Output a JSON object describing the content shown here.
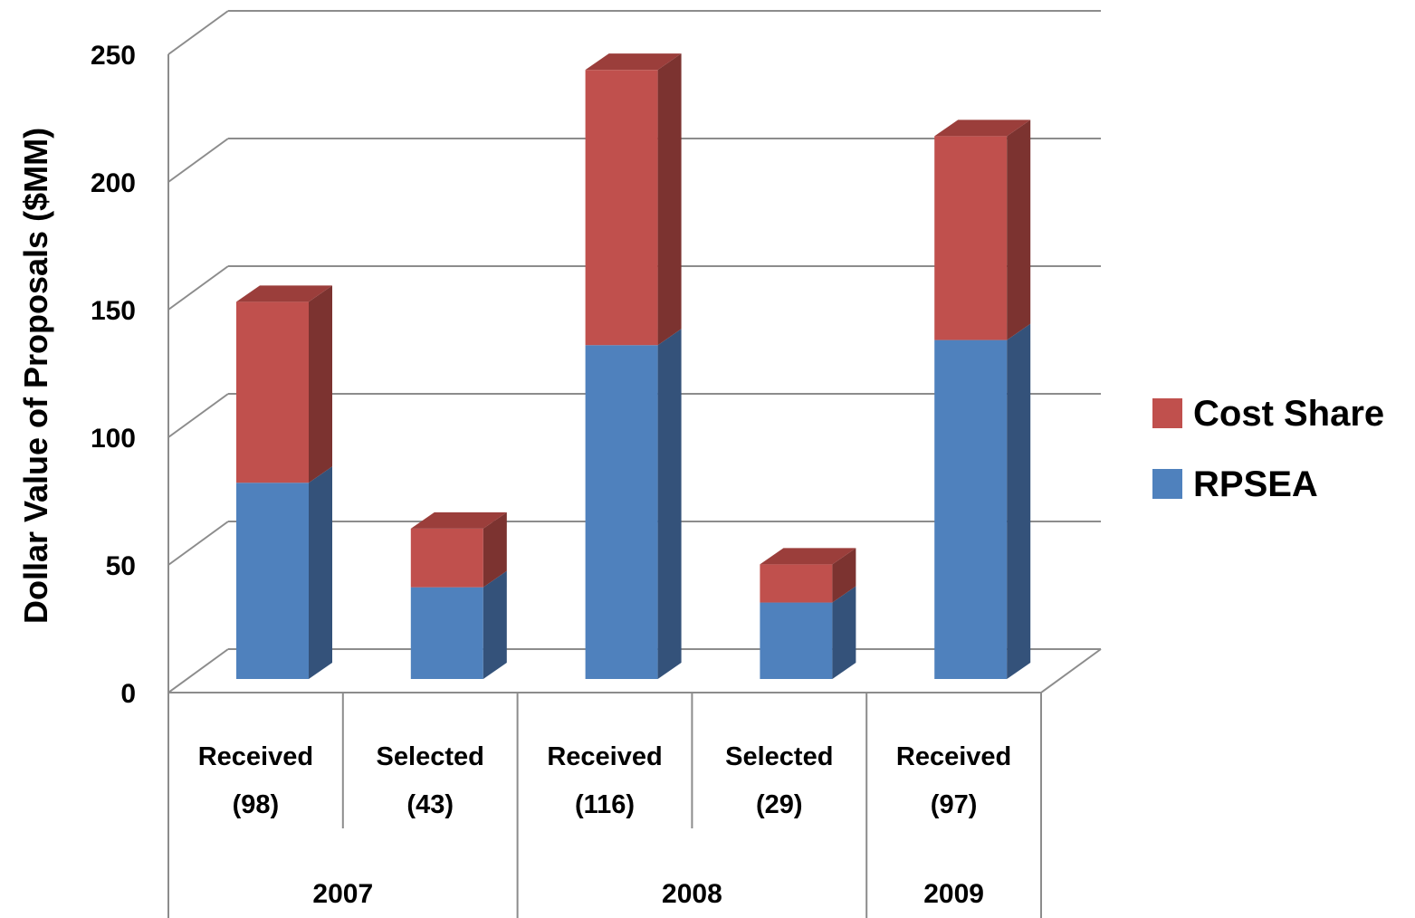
{
  "chart_data": {
    "type": "bar",
    "stacked": true,
    "three_d": true,
    "ylabel": "Dollar Value of Proposals ($MM)",
    "ylim": [
      0,
      250
    ],
    "yticks": [
      "0",
      "50",
      "100",
      "150",
      "200",
      "250"
    ],
    "ytick_values": [
      0,
      50,
      100,
      150,
      200,
      250
    ],
    "grid": true,
    "legend_position": "right",
    "categories": [
      {
        "line1": "Received",
        "line2": "(98)"
      },
      {
        "line1": "Selected",
        "line2": "(43)"
      },
      {
        "line1": "Received",
        "line2": "(116)"
      },
      {
        "line1": "Selected",
        "line2": "(29)"
      },
      {
        "line1": "Received",
        "line2": "(97)"
      }
    ],
    "groups": [
      {
        "label": "2007",
        "span": 2
      },
      {
        "label": "2008",
        "span": 2
      },
      {
        "label": "2009",
        "span": 1
      }
    ],
    "series": [
      {
        "name": "RPSEA",
        "values": [
          77,
          36,
          131,
          30,
          133
        ],
        "color": "#4F81BD",
        "side_color": "#34527A",
        "top_color": "#3E6696"
      },
      {
        "name": "Cost Share",
        "values": [
          71,
          23,
          108,
          15,
          80
        ],
        "color": "#C0504D",
        "side_color": "#7C3330",
        "top_color": "#9B3E3B"
      }
    ],
    "legend_order": [
      "Cost Share",
      "RPSEA"
    ]
  }
}
